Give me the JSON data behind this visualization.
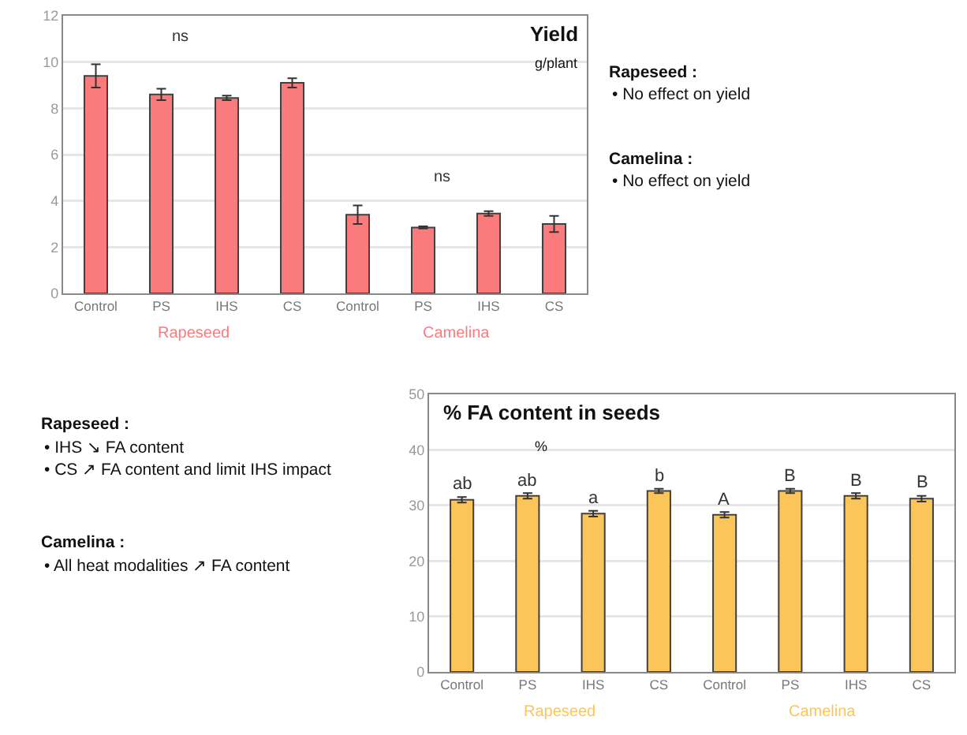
{
  "chart_data": [
    {
      "type": "bar",
      "title": "Yield",
      "subtitle": "g/plant",
      "categories": [
        "Control",
        "PS",
        "IHS",
        "CS",
        "Control",
        "PS",
        "IHS",
        "CS"
      ],
      "series": [
        {
          "name": "Rapeseed",
          "color": "#fb7a7b",
          "values": [
            9.4,
            8.6,
            8.45,
            9.1,
            null,
            null,
            null,
            null
          ],
          "errors": [
            0.5,
            0.25,
            0.1,
            0.2,
            null,
            null,
            null,
            null
          ]
        },
        {
          "name": "Camelina",
          "color": "#fb7a7b",
          "values": [
            null,
            null,
            null,
            null,
            3.4,
            2.85,
            3.45,
            3.0
          ],
          "errors": [
            null,
            null,
            null,
            null,
            0.4,
            0.05,
            0.1,
            0.35
          ]
        }
      ],
      "annotations": [
        "ns",
        "ns"
      ],
      "ylim": [
        0,
        12
      ],
      "yticks": [
        0,
        2,
        4,
        6,
        8,
        10,
        12
      ],
      "grid": "y",
      "legend": false
    },
    {
      "type": "other",
      "title": "Rapeseed :",
      "annotations": [
        "• No effect on yield"
      ]
    },
    {
      "type": "other",
      "title": "Camelina :",
      "annotations": [
        "• No effect on yield"
      ]
    },
    {
      "type": "other",
      "title": "Rapeseed :",
      "annotations": [
        "• IHS ↘ FA content",
        "• CS ↗ FA content and limit IHS impact"
      ]
    },
    {
      "type": "other",
      "title": "Camelina :",
      "annotations": [
        "• All heat modalities ↗ FA content"
      ]
    },
    {
      "type": "bar",
      "title": "% FA content in seeds",
      "subtitle": "%",
      "categories": [
        "Control",
        "PS",
        "IHS",
        "CS",
        "Control",
        "PS",
        "IHS",
        "CS"
      ],
      "series": [
        {
          "name": "Rapeseed",
          "color": "#fcc55a",
          "values": [
            31.0,
            31.7,
            28.5,
            32.6,
            null,
            null,
            null,
            null
          ],
          "errors": [
            0.5,
            0.5,
            0.5,
            0.4,
            null,
            null,
            null,
            null
          ],
          "value_labels": [
            "ab",
            "ab",
            "a",
            "b",
            null,
            null,
            null,
            null
          ]
        },
        {
          "name": "Camelina",
          "color": "#fcc55a",
          "values": [
            null,
            null,
            null,
            null,
            28.3,
            32.6,
            31.7,
            31.2
          ],
          "errors": [
            null,
            null,
            null,
            null,
            0.5,
            0.4,
            0.5,
            0.5
          ],
          "value_labels": [
            null,
            null,
            null,
            null,
            "A",
            "B",
            "B",
            "B"
          ]
        }
      ],
      "ylim": [
        0,
        50
      ],
      "yticks": [
        0,
        10,
        20,
        30,
        40,
        50
      ],
      "grid": "y",
      "legend": false
    }
  ]
}
